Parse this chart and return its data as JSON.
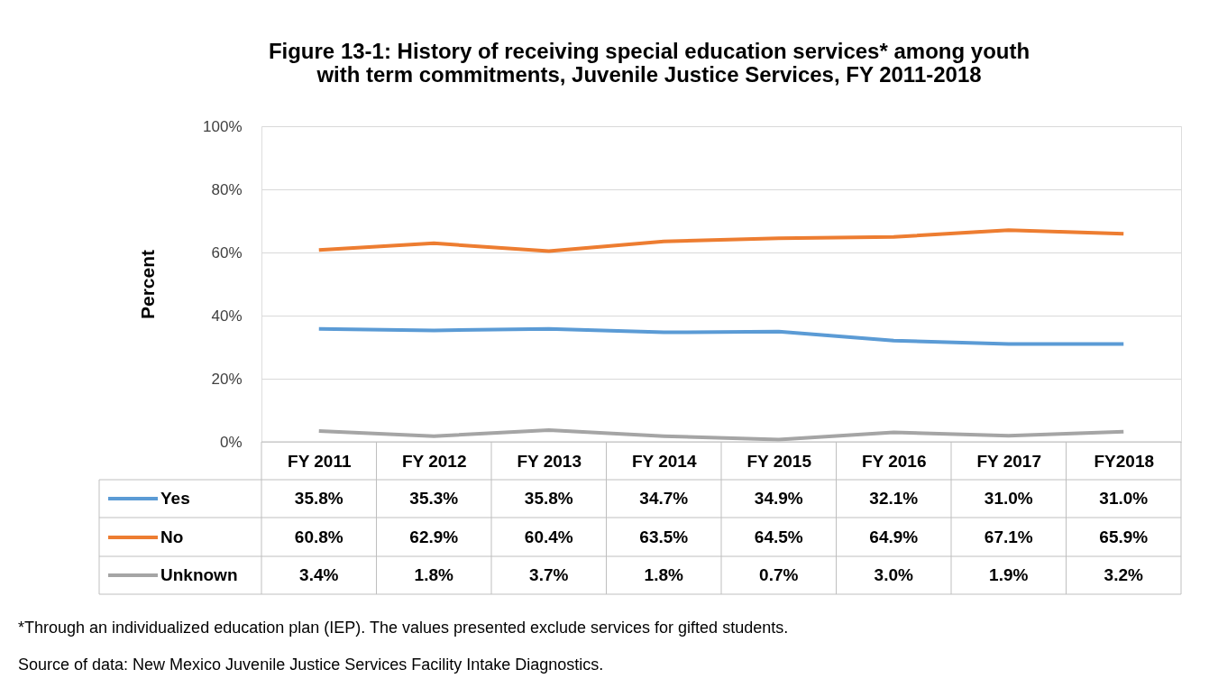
{
  "chart_data": {
    "type": "line",
    "title": [
      "Figure 13-1: History of receiving special education services* among youth",
      "with term commitments, Juvenile Justice Services, FY 2011-2018"
    ],
    "ylabel": "Percent",
    "categories": [
      "FY 2011",
      "FY 2012",
      "FY 2013",
      "FY 2014",
      "FY 2015",
      "FY 2016",
      "FY 2017",
      "FY2018"
    ],
    "series": [
      {
        "name": "Yes",
        "color": "#5b9bd5",
        "values": [
          35.8,
          35.3,
          35.8,
          34.7,
          34.9,
          32.1,
          31.0,
          31.0
        ],
        "value_labels": [
          "35.8%",
          "35.3%",
          "35.8%",
          "34.7%",
          "34.9%",
          "32.1%",
          "31.0%",
          "31.0%"
        ]
      },
      {
        "name": "No",
        "color": "#ed7d31",
        "values": [
          60.8,
          62.9,
          60.4,
          63.5,
          64.5,
          64.9,
          67.1,
          65.9
        ],
        "value_labels": [
          "60.8%",
          "62.9%",
          "60.4%",
          "63.5%",
          "64.5%",
          "64.9%",
          "67.1%",
          "65.9%"
        ]
      },
      {
        "name": "Unknown",
        "color": "#a5a5a5",
        "values": [
          3.4,
          1.8,
          3.7,
          1.8,
          0.7,
          3.0,
          1.9,
          3.2
        ],
        "value_labels": [
          "3.4%",
          "1.8%",
          "3.7%",
          "1.8%",
          "0.7%",
          "3.0%",
          "1.9%",
          "3.2%"
        ]
      }
    ],
    "ylim": [
      0,
      100
    ],
    "yticks": [
      {
        "value": 0,
        "label": "0%"
      },
      {
        "value": 20,
        "label": "20%"
      },
      {
        "value": 40,
        "label": "40%"
      },
      {
        "value": 60,
        "label": "60%"
      },
      {
        "value": 80,
        "label": "80%"
      },
      {
        "value": 100,
        "label": "100%"
      }
    ],
    "grid": "y",
    "legend": "bottom left",
    "marker": "none",
    "line_style": "solid",
    "annotations": [
      "*Through an individualized education plan (IEP).  The values presented exclude services for gifted students.",
      "Source of data: New Mexico Juvenile Justice Services Facility Intake Diagnostics."
    ]
  }
}
